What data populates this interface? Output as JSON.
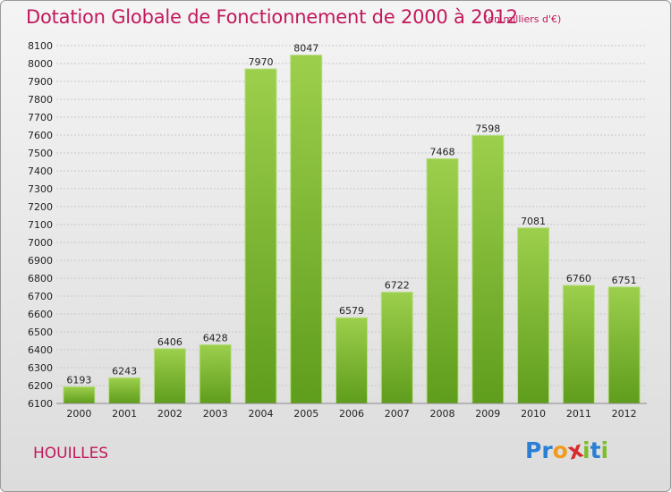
{
  "header": {
    "title": "Dotation Globale de Fonctionnement de 2000 à 2012",
    "subtitle": "(en milliers d'€)"
  },
  "footer": {
    "city": "HOUILLES",
    "logo_letters": [
      {
        "ch": "P",
        "color": "#2a7fd4"
      },
      {
        "ch": "r",
        "color": "#2a7fd4"
      },
      {
        "ch": "o",
        "color": "#f29a1d"
      },
      {
        "ch": "x",
        "color": "#d92b2b"
      },
      {
        "ch": "i",
        "color": "#7cbf2a"
      },
      {
        "ch": "t",
        "color": "#2a7fd4"
      },
      {
        "ch": "i",
        "color": "#7cbf2a"
      }
    ]
  },
  "chart_data": {
    "type": "bar",
    "title": "Dotation Globale de Fonctionnement de 2000 à 2012",
    "subtitle": "(en milliers d'€)",
    "categories": [
      "2000",
      "2001",
      "2002",
      "2003",
      "2004",
      "2005",
      "2006",
      "2007",
      "2008",
      "2009",
      "2010",
      "2011",
      "2012"
    ],
    "values": [
      6193,
      6243,
      6406,
      6428,
      7970,
      8047,
      6579,
      6722,
      7468,
      7598,
      7081,
      6760,
      6751
    ],
    "ylim": [
      6100,
      8100
    ],
    "ytick_step": 100,
    "grid": true,
    "bar_color_top": "#9ccf4c",
    "bar_color_bottom": "#5f9d1c"
  }
}
